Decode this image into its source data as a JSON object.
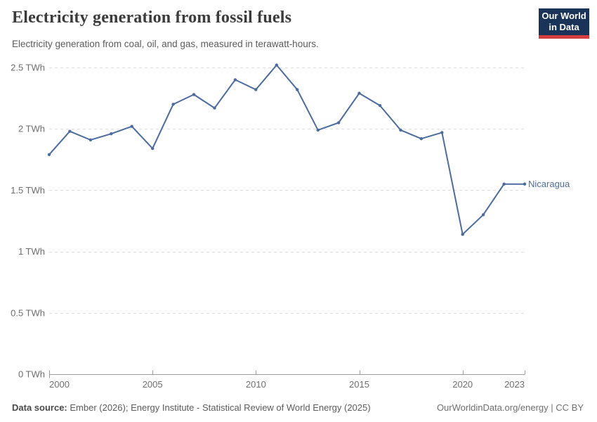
{
  "header": {
    "title": "Electricity generation from fossil fuels",
    "subtitle": "Electricity generation from coal, oil, and gas, measured in terawatt-hours.",
    "logo_line1": "Our World",
    "logo_line2": "in Data"
  },
  "chart_data": {
    "type": "line",
    "title": "Electricity generation from fossil fuels",
    "unit": "TWh",
    "entity": "Nicaragua",
    "x": [
      2000,
      2001,
      2002,
      2003,
      2004,
      2005,
      2006,
      2007,
      2008,
      2009,
      2010,
      2011,
      2012,
      2013,
      2014,
      2015,
      2016,
      2017,
      2018,
      2019,
      2020,
      2021,
      2022,
      2023
    ],
    "series": [
      {
        "name": "Nicaragua",
        "color": "#4C6B9E",
        "values": [
          1.79,
          1.98,
          1.91,
          1.96,
          2.02,
          1.84,
          2.2,
          2.28,
          2.17,
          2.4,
          2.32,
          2.52,
          2.32,
          1.99,
          2.05,
          2.29,
          2.19,
          1.99,
          1.92,
          1.97,
          1.14,
          1.3,
          1.55,
          1.55
        ]
      }
    ],
    "xlim": [
      2000,
      2023
    ],
    "ylim": [
      0,
      2.5
    ],
    "y_ticks": [
      {
        "value": 0,
        "label": "0 TWh"
      },
      {
        "value": 0.5,
        "label": "0.5 TWh"
      },
      {
        "value": 1,
        "label": "1 TWh"
      },
      {
        "value": 1.5,
        "label": "1.5 TWh"
      },
      {
        "value": 2,
        "label": "2 TWh"
      },
      {
        "value": 2.5,
        "label": "2.5 TWh"
      }
    ],
    "x_ticks": [
      {
        "value": 2000,
        "label": "2000"
      },
      {
        "value": 2005,
        "label": "2005"
      },
      {
        "value": 2010,
        "label": "2010"
      },
      {
        "value": 2015,
        "label": "2015"
      },
      {
        "value": 2020,
        "label": "2020"
      },
      {
        "value": 2023,
        "label": "2023"
      }
    ],
    "grid": "horizontal-dashed",
    "legend_position": "end-of-line-label"
  },
  "colors": {
    "line": "#4C6B9E",
    "grid": "#DEDEDE",
    "axis": "#9C9C9C",
    "tick_text": "#6E6E6E",
    "title_text": "#3B3B3B",
    "subtitle_text": "#5B5B5B",
    "logo_navy": "#1A3459",
    "logo_red": "#D53E3E"
  },
  "footer": {
    "source_label": "Data source:",
    "source_text": " Ember (2026); Energy Institute - Statistical Review of World Energy (2025)",
    "right_text": "OurWorldinData.org/energy | CC BY"
  }
}
